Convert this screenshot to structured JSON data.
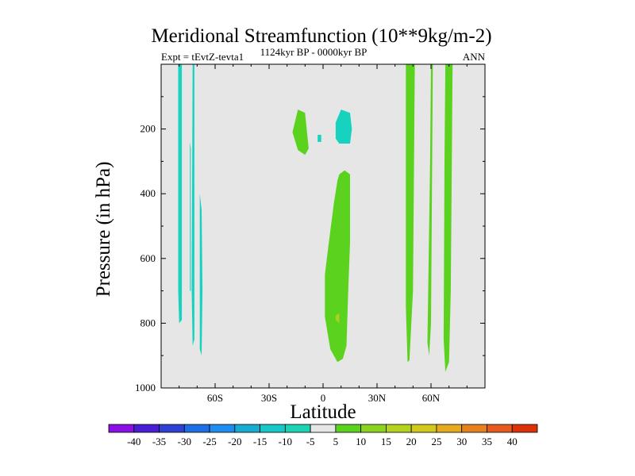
{
  "chart_data": {
    "type": "contour",
    "title": "Meridional Streamfunction (10**9kg/m-2)",
    "subtitle_left": "Expt = tEvtZ-tevta1",
    "subtitle_center": "1124kyr BP - 0000kyr BP",
    "subtitle_right": "ANN",
    "xlabel": "Latitude",
    "ylabel": "Pressure (in hPa)",
    "xlim": [
      -90,
      90
    ],
    "ylim": [
      1000,
      0
    ],
    "x_ticks": [
      {
        "value": -60,
        "label": "60S"
      },
      {
        "value": -30,
        "label": "30S"
      },
      {
        "value": 0,
        "label": "0"
      },
      {
        "value": 30,
        "label": "30N"
      },
      {
        "value": 60,
        "label": "60N"
      }
    ],
    "y_ticks": [
      {
        "value": 200,
        "label": "200"
      },
      {
        "value": 400,
        "label": "400"
      },
      {
        "value": 600,
        "label": "600"
      },
      {
        "value": 800,
        "label": "800"
      },
      {
        "value": 1000,
        "label": "1000"
      }
    ],
    "colorbar": {
      "labels": [
        "-40",
        "-35",
        "-30",
        "-25",
        "-20",
        "-15",
        "-10",
        "-5",
        "5",
        "10",
        "15",
        "20",
        "25",
        "30",
        "35",
        "40"
      ],
      "colors": [
        "#8a10e6",
        "#4a1ed2",
        "#3040d2",
        "#1e6ee6",
        "#1e8cf0",
        "#18acd0",
        "#18c8c8",
        "#1ed2b4",
        "#e6e6e6",
        "#5ad21e",
        "#8cd21e",
        "#b4d21e",
        "#d2c81e",
        "#e6aa1e",
        "#e6821e",
        "#e65a1e",
        "#dc320a"
      ]
    },
    "regions": [
      {
        "level": "-10 to -5",
        "color": "#18d2c0",
        "points": [
          [
            -80.5,
            0
          ],
          [
            -78.5,
            0
          ],
          [
            -78.5,
            790
          ],
          [
            -80,
            800
          ],
          [
            -80.5,
            700
          ]
        ]
      },
      {
        "level": "-10 to -5",
        "color": "#18d2c0",
        "points": [
          [
            -72.5,
            0
          ],
          [
            -71.5,
            0
          ],
          [
            -71.5,
            850
          ],
          [
            -72.5,
            870
          ],
          [
            -73,
            700
          ]
        ]
      },
      {
        "level": "-10 to -5",
        "color": "#18d2c0",
        "points": [
          [
            -74,
            240
          ],
          [
            -73.5,
            260
          ],
          [
            -73.5,
            700
          ],
          [
            -74,
            700
          ]
        ]
      },
      {
        "level": "-10 to -5",
        "color": "#18d2c0",
        "points": [
          [
            -68.5,
            400
          ],
          [
            -67.5,
            450
          ],
          [
            -67,
            700
          ],
          [
            -67.5,
            900
          ],
          [
            -68.5,
            880
          ],
          [
            -68.5,
            600
          ]
        ]
      },
      {
        "level": "5 to 10",
        "color": "#5ad21e",
        "points": [
          [
            -17,
            210
          ],
          [
            -14,
            140
          ],
          [
            -10,
            150
          ],
          [
            -8,
            260
          ],
          [
            -10,
            280
          ],
          [
            -14,
            265
          ]
        ]
      },
      {
        "level": "-10 to -5",
        "color": "#18d2c0",
        "points": [
          [
            7,
            180
          ],
          [
            10,
            140
          ],
          [
            15,
            150
          ],
          [
            16,
            200
          ],
          [
            15,
            245
          ],
          [
            9,
            245
          ],
          [
            7,
            230
          ]
        ]
      },
      {
        "level": "-10 to -5",
        "color": "#18d2c0",
        "points": [
          [
            -3,
            218
          ],
          [
            -1,
            218
          ],
          [
            -1,
            240
          ],
          [
            -3,
            240
          ]
        ]
      },
      {
        "level": "5 to 10",
        "color": "#5ad21e",
        "points": [
          [
            9,
            340
          ],
          [
            12,
            328
          ],
          [
            15,
            340
          ],
          [
            15,
            550
          ],
          [
            14,
            700
          ],
          [
            13,
            870
          ],
          [
            11,
            910
          ],
          [
            8,
            920
          ],
          [
            4,
            880
          ],
          [
            1,
            780
          ],
          [
            1,
            650
          ],
          [
            3,
            560
          ],
          [
            6,
            430
          ],
          [
            8,
            360
          ]
        ]
      },
      {
        "level": "10 to 15",
        "color": "#a8d21e",
        "points": [
          [
            7,
            775
          ],
          [
            9,
            770
          ],
          [
            9,
            800
          ],
          [
            7,
            790
          ]
        ]
      },
      {
        "level": "5 to 10",
        "color": "#5ad21e",
        "points": [
          [
            46,
            0
          ],
          [
            51,
            0
          ],
          [
            50,
            700
          ],
          [
            48,
            915
          ],
          [
            47,
            920
          ],
          [
            46,
            750
          ],
          [
            46,
            300
          ]
        ]
      },
      {
        "level": "5 to 10",
        "color": "#5ad21e",
        "points": [
          [
            60,
            0
          ],
          [
            61,
            0
          ],
          [
            60,
            800
          ],
          [
            59,
            900
          ],
          [
            58,
            860
          ],
          [
            59.5,
            300
          ]
        ]
      },
      {
        "level": "5 to 10",
        "color": "#5ad21e",
        "points": [
          [
            68,
            0
          ],
          [
            72,
            0
          ],
          [
            71,
            700
          ],
          [
            70,
            920
          ],
          [
            68,
            950
          ],
          [
            67,
            850
          ],
          [
            67.5,
            300
          ]
        ]
      }
    ]
  }
}
